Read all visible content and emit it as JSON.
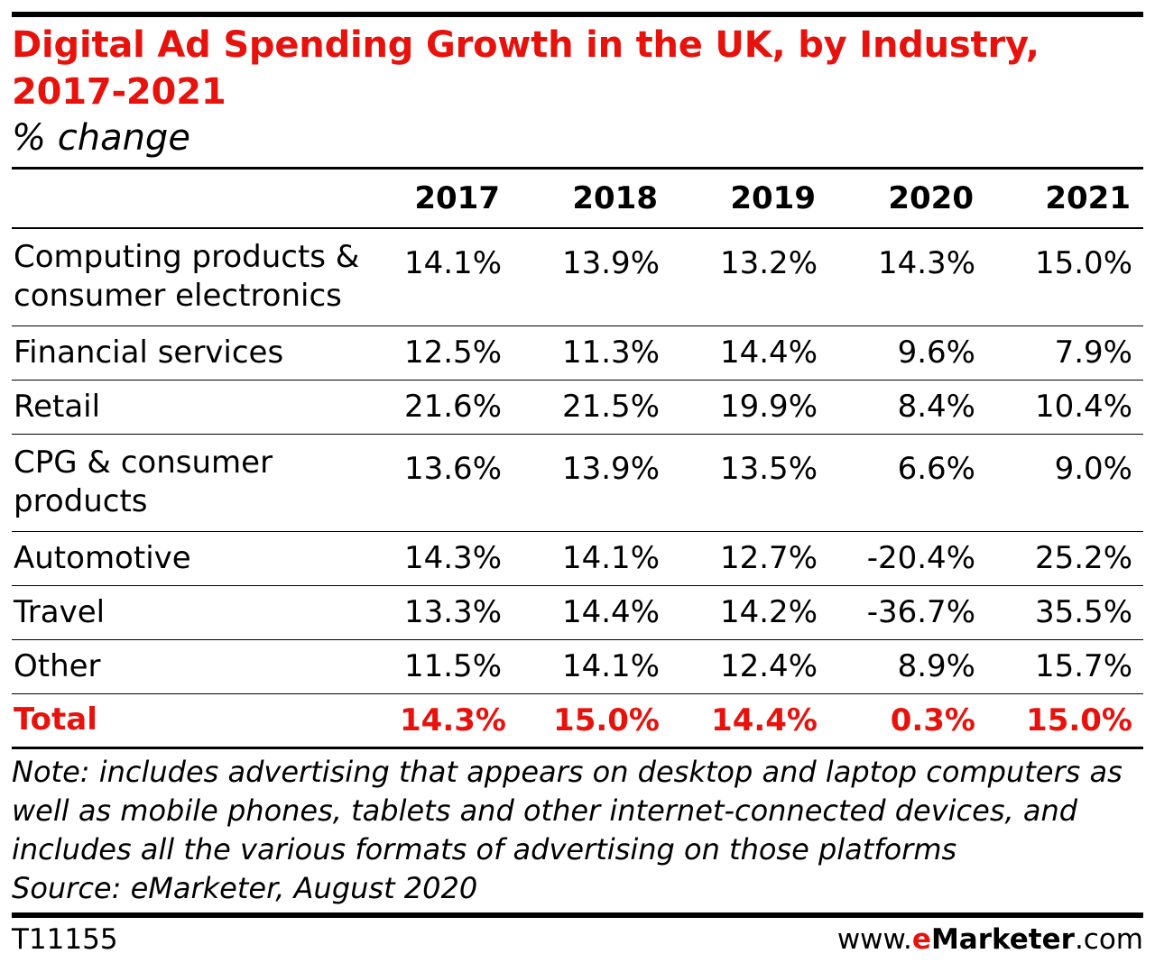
{
  "title": "Digital Ad Spending Growth in the UK, by Industry, 2017-2021",
  "subtitle": "% change",
  "columns": [
    "2017",
    "2018",
    "2019",
    "2020",
    "2021"
  ],
  "rows": [
    {
      "label": "Computing products & consumer electronics",
      "values": [
        "14.1%",
        "13.9%",
        "13.2%",
        "14.3%",
        "15.0%"
      ]
    },
    {
      "label": "Financial services",
      "values": [
        "12.5%",
        "11.3%",
        "14.4%",
        "9.6%",
        "7.9%"
      ]
    },
    {
      "label": "Retail",
      "values": [
        "21.6%",
        "21.5%",
        "19.9%",
        "8.4%",
        "10.4%"
      ]
    },
    {
      "label": "CPG & consumer products",
      "values": [
        "13.6%",
        "13.9%",
        "13.5%",
        "6.6%",
        "9.0%"
      ]
    },
    {
      "label": "Automotive",
      "values": [
        "14.3%",
        "14.1%",
        "12.7%",
        "-20.4%",
        "25.2%"
      ]
    },
    {
      "label": "Travel",
      "values": [
        "13.3%",
        "14.4%",
        "14.2%",
        "-36.7%",
        "35.5%"
      ]
    },
    {
      "label": "Other",
      "values": [
        "11.5%",
        "14.1%",
        "12.4%",
        "8.9%",
        "15.7%"
      ]
    }
  ],
  "total": {
    "label": "Total",
    "values": [
      "14.3%",
      "15.0%",
      "14.4%",
      "0.3%",
      "15.0%"
    ]
  },
  "note": "Note: includes advertising that appears on desktop and laptop computers as well as mobile phones, tablets and other internet-connected devices, and includes all the various formats of advertising on those platforms",
  "source": "Source: eMarketer, August 2020",
  "footer": {
    "code": "T11155",
    "site_prefix": "www.",
    "site_brand_e": "e",
    "site_brand_rest": "Marketer",
    "site_suffix": ".com"
  },
  "colors": {
    "accent": "#e8120d",
    "text": "#000000",
    "rule": "#000000"
  },
  "chart_data": {
    "type": "table",
    "title": "Digital Ad Spending Growth in the UK, by Industry, 2017-2021",
    "subtitle": "% change",
    "columns": [
      "2017",
      "2018",
      "2019",
      "2020",
      "2021"
    ],
    "series": [
      {
        "name": "Computing products & consumer electronics",
        "values": [
          14.1,
          13.9,
          13.2,
          14.3,
          15.0
        ]
      },
      {
        "name": "Financial services",
        "values": [
          12.5,
          11.3,
          14.4,
          9.6,
          7.9
        ]
      },
      {
        "name": "Retail",
        "values": [
          21.6,
          21.5,
          19.9,
          8.4,
          10.4
        ]
      },
      {
        "name": "CPG & consumer products",
        "values": [
          13.6,
          13.9,
          13.5,
          6.6,
          9.0
        ]
      },
      {
        "name": "Automotive",
        "values": [
          14.3,
          14.1,
          12.7,
          -20.4,
          25.2
        ]
      },
      {
        "name": "Travel",
        "values": [
          13.3,
          14.4,
          14.2,
          -36.7,
          35.5
        ]
      },
      {
        "name": "Other",
        "values": [
          11.5,
          14.1,
          12.4,
          8.9,
          15.7
        ]
      },
      {
        "name": "Total",
        "values": [
          14.3,
          15.0,
          14.4,
          0.3,
          15.0
        ]
      }
    ]
  }
}
